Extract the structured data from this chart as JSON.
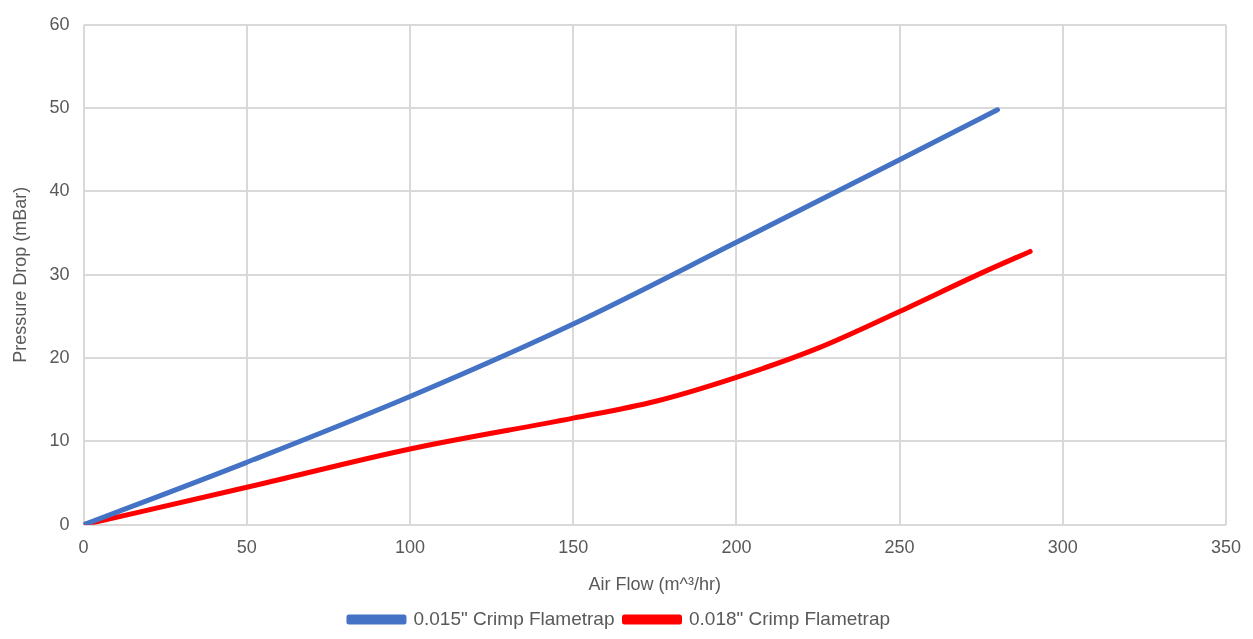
{
  "chart_data": {
    "type": "line",
    "xlabel": "Air Flow (m^³/hr)",
    "ylabel": "Pressure Drop (mBar)",
    "xlim": [
      0,
      350
    ],
    "xticks": [
      0,
      50,
      100,
      150,
      200,
      250,
      300,
      350
    ],
    "ylim": [
      0,
      60
    ],
    "yticks": [
      0,
      10,
      20,
      30,
      40,
      50,
      60
    ],
    "grid": true,
    "legend": "bottom",
    "marker": "none",
    "line_style": "solid",
    "series": [
      {
        "name": "0.015\" Crimp Flametrap",
        "color": "#4472c4",
        "x": [
          0,
          50,
          100,
          150,
          200,
          250,
          280
        ],
        "values": [
          0,
          7.5,
          15.4,
          24.1,
          33.9,
          43.8,
          49.8
        ]
      },
      {
        "name": "0.018\" Crimp Flametrap",
        "color": "#ff0000",
        "x": [
          0,
          50,
          100,
          150,
          175,
          200,
          225,
          250,
          275,
          290
        ],
        "values": [
          0,
          4.5,
          9.1,
          12.8,
          14.8,
          17.7,
          21.2,
          25.6,
          30.2,
          32.8
        ]
      }
    ]
  }
}
